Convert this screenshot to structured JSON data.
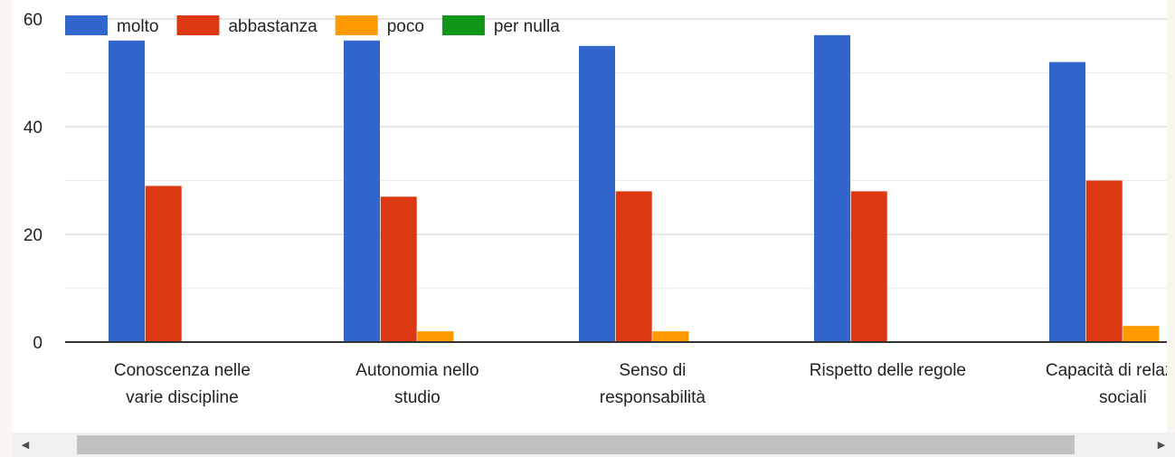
{
  "chart_data": {
    "type": "bar",
    "categories": [
      [
        "Conoscenza nelle",
        "varie discipline"
      ],
      [
        "Autonomia nello",
        "studio"
      ],
      [
        "Senso di",
        "responsabilità"
      ],
      [
        "Rispetto delle regole"
      ],
      [
        "Capacità di relazioni",
        "sociali"
      ]
    ],
    "series": [
      {
        "name": "molto",
        "color": "#3366cc",
        "values": [
          56,
          56,
          55,
          57,
          52
        ]
      },
      {
        "name": "abbastanza",
        "color": "#dc3912",
        "values": [
          29,
          27,
          28,
          28,
          30
        ]
      },
      {
        "name": "poco",
        "color": "#ff9900",
        "values": [
          0,
          2,
          2,
          0,
          3
        ]
      },
      {
        "name": "per nulla",
        "color": "#109618",
        "values": [
          0,
          0,
          0,
          0,
          0
        ]
      }
    ],
    "yticks": [
      "0",
      "20",
      "40",
      "60"
    ],
    "ylim": [
      0,
      60
    ],
    "grid": true,
    "legend_position": "top-left"
  },
  "scrollbar": {
    "left_arrow": "◀",
    "right_arrow": "▶"
  }
}
